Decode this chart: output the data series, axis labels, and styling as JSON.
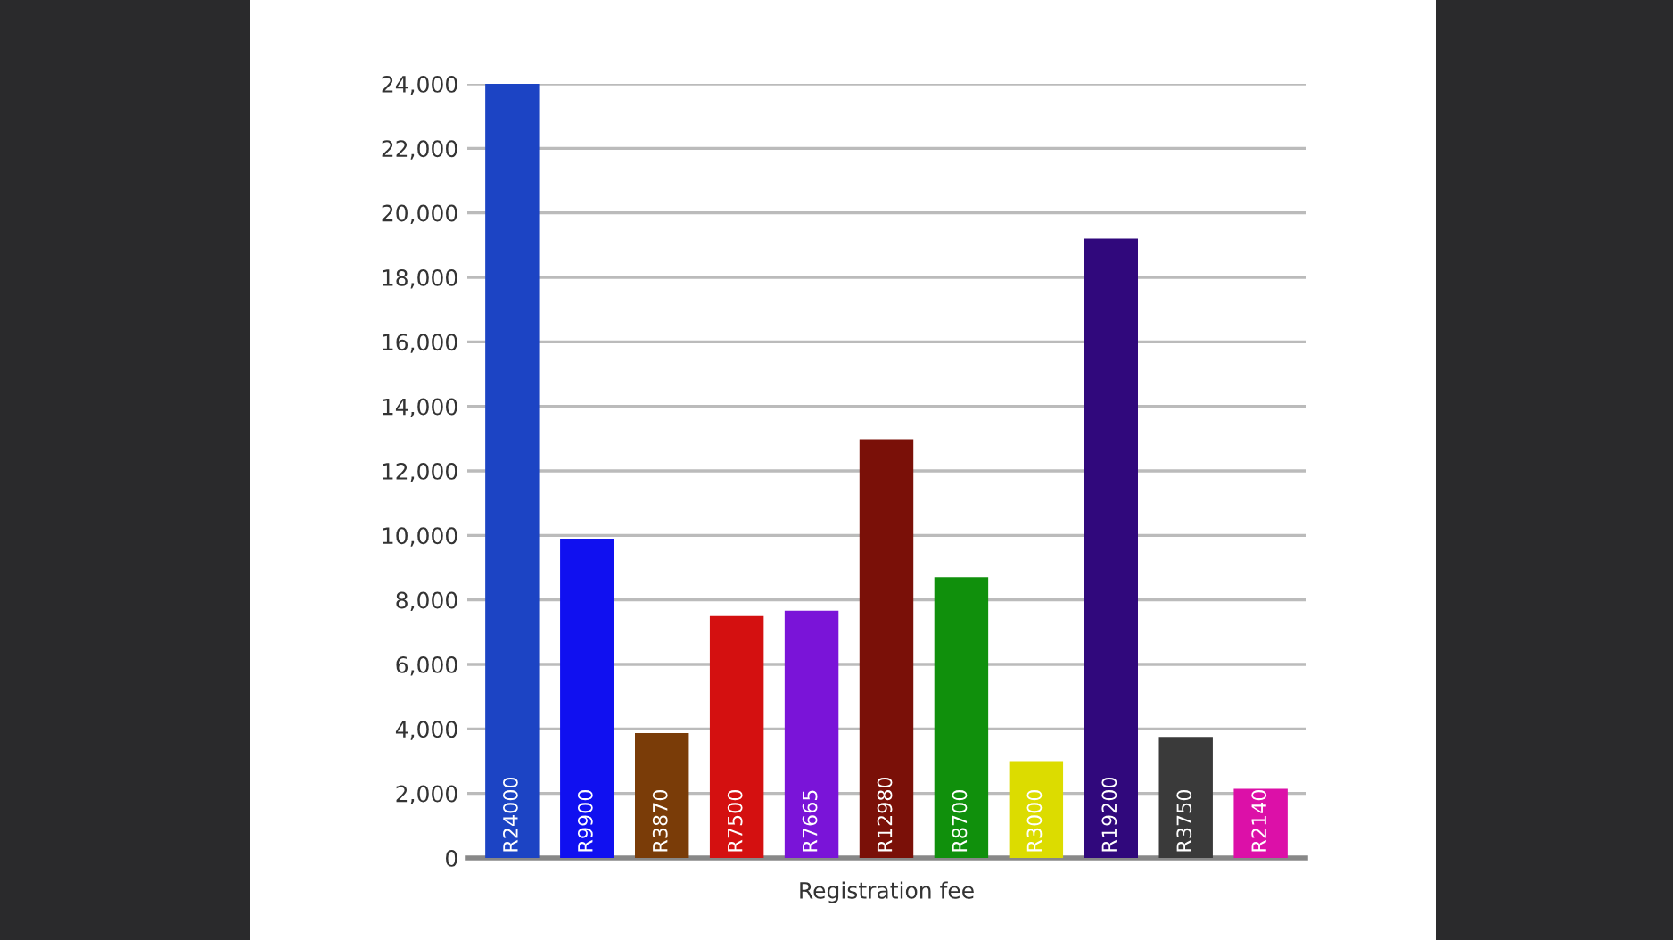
{
  "chart_data": {
    "type": "bar",
    "xlabel": "Registration fee",
    "categories": [
      null,
      null,
      null,
      null,
      null,
      null,
      null,
      null,
      null,
      null,
      null
    ],
    "values": [
      24000,
      9900,
      3870,
      7500,
      7665,
      12980,
      8700,
      3000,
      19200,
      3750,
      2140
    ],
    "colors": [
      "#1c44c4",
      "#1010f0",
      "#7a3c08",
      "#d41010",
      "#7a14d8",
      "#7a1008",
      "#10900c",
      "#dcdc00",
      "#30087c",
      "#3a3a3a",
      "#dc10a8"
    ],
    "value_labels": [
      "R24000",
      "R9900",
      "R3870",
      "R7500",
      "R7665",
      "R12980",
      "R8700",
      "R3000",
      "R19200",
      "R3750",
      "R2140"
    ],
    "ylim": [
      0,
      24000
    ],
    "yticks": [
      0,
      {
        "value": 2000,
        "label": "2,000"
      },
      {
        "value": 4000,
        "label": "4,000"
      },
      {
        "value": 6000,
        "label": "6,000"
      },
      {
        "value": 8000,
        "label": "8,000"
      },
      {
        "value": 10000,
        "label": "10,000"
      },
      {
        "value": 12000,
        "label": "12,000"
      },
      {
        "value": 14000,
        "label": "14,000"
      },
      {
        "value": 16000,
        "label": "16,000"
      },
      {
        "value": 18000,
        "label": "18,000"
      },
      {
        "value": 20000,
        "label": "20,000"
      },
      {
        "value": 22000,
        "label": "22,000"
      },
      {
        "value": 24000,
        "label": "24,000"
      }
    ],
    "grid": "y"
  }
}
